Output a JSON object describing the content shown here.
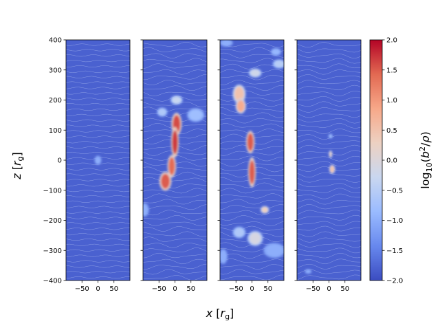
{
  "chart_data": {
    "type": "heatmap",
    "description_panels": 4,
    "xlabel": "x [r_g]",
    "ylabel": "z [r_g]",
    "xlim": [
      -100,
      100
    ],
    "ylim": [
      -400,
      400
    ],
    "x_ticks": [
      -50,
      0,
      50
    ],
    "y_ticks": [
      -400,
      -300,
      -200,
      -100,
      0,
      100,
      200,
      300,
      400
    ],
    "colorbar": {
      "label": "log10(b^2/rho)",
      "range": [
        -2.0,
        2.0
      ],
      "ticks": [
        "-2.0",
        "-1.5",
        "-1.0",
        "-0.5",
        "0.0",
        "0.5",
        "1.0",
        "1.5",
        "2.0"
      ],
      "colormap": "coolwarm",
      "stops": [
        "#3b4cc0",
        "#6788ee",
        "#9abbff",
        "#c9d7f0",
        "#edd1c2",
        "#f7a889",
        "#e26952",
        "#b40426"
      ]
    },
    "background_value": -1.8,
    "panels": [
      {
        "features": [
          {
            "x": 0,
            "z": 0,
            "rx": 8,
            "rz": 12,
            "value": -1.0
          }
        ]
      },
      {
        "features": [
          {
            "x": 5,
            "z": 120,
            "rx": 12,
            "rz": 30,
            "value": 1.6
          },
          {
            "x": 0,
            "z": 60,
            "rx": 9,
            "rz": 40,
            "value": 1.7
          },
          {
            "x": -10,
            "z": -20,
            "rx": 10,
            "rz": 30,
            "value": 1.4
          },
          {
            "x": -30,
            "z": -70,
            "rx": 14,
            "rz": 25,
            "value": 1.5
          },
          {
            "x": -40,
            "z": 160,
            "rx": 12,
            "rz": 12,
            "value": -0.6
          },
          {
            "x": 5,
            "z": 200,
            "rx": 14,
            "rz": 12,
            "value": -0.3
          },
          {
            "x": 65,
            "z": 150,
            "rx": 20,
            "rz": 18,
            "value": -0.8
          },
          {
            "x": -95,
            "z": -165,
            "rx": 10,
            "rz": 18,
            "value": -1.0
          }
        ]
      },
      {
        "features": [
          {
            "x": -40,
            "z": 220,
            "rx": 15,
            "rz": 25,
            "value": 0.5
          },
          {
            "x": -35,
            "z": 180,
            "rx": 12,
            "rz": 20,
            "value": 0.8
          },
          {
            "x": -5,
            "z": 60,
            "rx": 10,
            "rz": 30,
            "value": 1.5
          },
          {
            "x": 0,
            "z": -40,
            "rx": 9,
            "rz": 40,
            "value": 1.5
          },
          {
            "x": 10,
            "z": 290,
            "rx": 15,
            "rz": 12,
            "value": -0.2
          },
          {
            "x": 85,
            "z": 320,
            "rx": 15,
            "rz": 12,
            "value": -0.5
          },
          {
            "x": 75,
            "z": 360,
            "rx": 12,
            "rz": 10,
            "value": -0.9
          },
          {
            "x": 40,
            "z": -165,
            "rx": 10,
            "rz": 10,
            "value": 0.3
          },
          {
            "x": 10,
            "z": -260,
            "rx": 18,
            "rz": 20,
            "value": -0.1
          },
          {
            "x": -40,
            "z": -240,
            "rx": 15,
            "rz": 15,
            "value": -0.6
          },
          {
            "x": -90,
            "z": -320,
            "rx": 10,
            "rz": 20,
            "value": -1.0
          },
          {
            "x": 70,
            "z": -300,
            "rx": 25,
            "rz": 20,
            "value": -1.0
          },
          {
            "x": -80,
            "z": 390,
            "rx": 15,
            "rz": 10,
            "value": -1.0
          }
        ]
      },
      {
        "features": [
          {
            "x": 10,
            "z": -30,
            "rx": 7,
            "rz": 12,
            "value": 0.5
          },
          {
            "x": 5,
            "z": 20,
            "rx": 4,
            "rz": 10,
            "value": 0.2
          },
          {
            "x": 5,
            "z": 80,
            "rx": 5,
            "rz": 6,
            "value": -0.8
          },
          {
            "x": -65,
            "z": -370,
            "rx": 8,
            "rz": 6,
            "value": -1.0
          }
        ]
      }
    ]
  }
}
